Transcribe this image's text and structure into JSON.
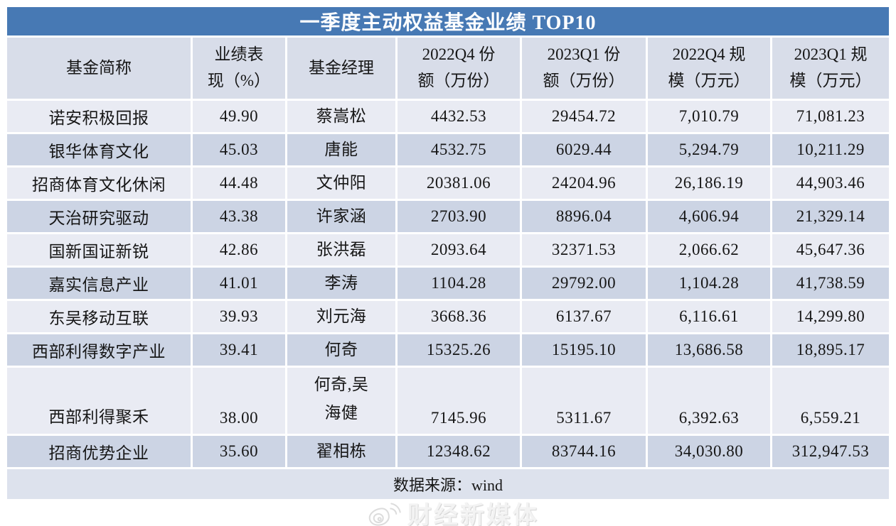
{
  "chart_data": {
    "type": "table",
    "title": "一季度主动权益基金业绩 TOP10",
    "columns": [
      "基金简称",
      "业绩表\n现（%）",
      "基金经理",
      "2022Q4 份\n额（万份）",
      "2023Q1 份\n额（万份）",
      "2022Q4 规\n模（万元）",
      "2023Q1 规\n模（万元）"
    ],
    "rows": [
      [
        "诺安积极回报",
        "49.90",
        "蔡嵩松",
        "4432.53",
        "29454.72",
        "7,010.79",
        "71,081.23"
      ],
      [
        "银华体育文化",
        "45.03",
        "唐能",
        "4532.75",
        "6029.44",
        "5,294.79",
        "10,211.29"
      ],
      [
        "招商体育文化休闲",
        "44.48",
        "文仲阳",
        "20381.06",
        "24204.96",
        "26,186.19",
        "44,903.46"
      ],
      [
        "天治研究驱动",
        "43.38",
        "许家涵",
        "2703.90",
        "8896.04",
        "4,606.94",
        "21,329.14"
      ],
      [
        "国新国证新锐",
        "42.86",
        "张洪磊",
        "2093.64",
        "32371.53",
        "2,066.62",
        "45,647.36"
      ],
      [
        "嘉实信息产业",
        "41.01",
        "李涛",
        "1104.28",
        "29792.00",
        "1,104.28",
        "41,738.59"
      ],
      [
        "东吴移动互联",
        "39.93",
        "刘元海",
        "3668.36",
        "6137.67",
        "6,116.61",
        "14,299.80"
      ],
      [
        "西部利得数字产业",
        "39.41",
        "何奇",
        "15325.26",
        "15195.10",
        "13,686.58",
        "18,895.17"
      ],
      [
        "西部利得聚禾",
        "38.00",
        "何奇,吴\n海健",
        "7145.96",
        "5311.67",
        "6,392.63",
        "6,559.21"
      ],
      [
        "招商优势企业",
        "35.60",
        "翟相栋",
        "12348.62",
        "83744.16",
        "34,030.80",
        "312,947.53"
      ]
    ]
  },
  "footer": {
    "source": "数据来源：wind"
  },
  "watermark": {
    "icon": "weibo-logo",
    "text": "财经新媒体"
  },
  "colors": {
    "title_bar": "#4779B4",
    "header_bg": "#D8DDE9",
    "row_odd": "#E9EBF3",
    "row_even": "#CCD4E4",
    "footer_bg": "#DDE2ED",
    "title_text": "#FFFFFF",
    "body_text": "#161616"
  }
}
